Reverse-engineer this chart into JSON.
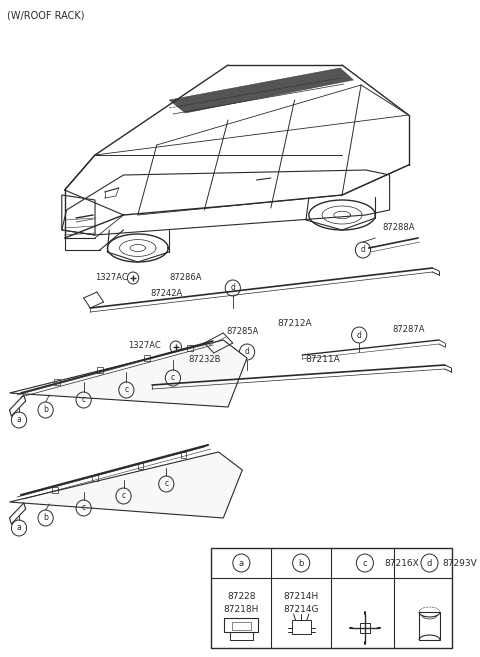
{
  "title": "(W/ROOF RACK)",
  "bg_color": "#ffffff",
  "legend": {
    "a_codes": "87228\n87218H",
    "b_codes": "87214H\n87214G",
    "c_code": "87216X",
    "d_code": "87293V"
  }
}
